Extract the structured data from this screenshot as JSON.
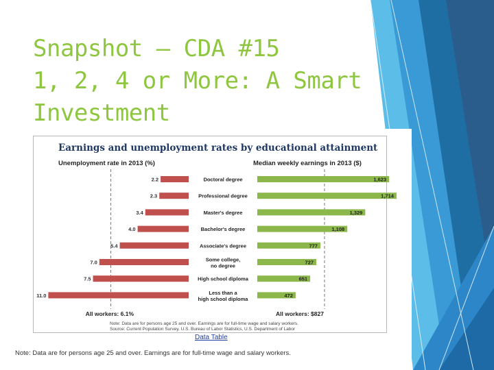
{
  "slide": {
    "title_lines": [
      "Snapshot – CDA #15",
      "1, 2, 4 or More: A Smart",
      "Investment"
    ],
    "data_table_link": "Data Table",
    "note": "Note: Data are for persons age 25 and over. Earnings are for full-time wage and salary workers."
  },
  "colors": {
    "title": "#8ec63f",
    "unemployment_bar": "#c0504d",
    "earnings_bar": "#8cb84b",
    "chart_title": "#1f3864"
  },
  "chart_data": {
    "type": "bar",
    "title": "Earnings and unemployment rates by educational attainment",
    "categories": [
      "Doctoral degree",
      "Professional degree",
      "Master's degree",
      "Bachelor's degree",
      "Associate's degree",
      "Some college, no degree",
      "High school diploma",
      "Less than a high school diploma"
    ],
    "category_lines": [
      [
        "Doctoral degree"
      ],
      [
        "Professional degree"
      ],
      [
        "Master's degree"
      ],
      [
        "Bachelor's degree"
      ],
      [
        "Associate's degree"
      ],
      [
        "Some college,",
        "no degree"
      ],
      [
        "High school diploma"
      ],
      [
        "Less than a",
        "high school diploma"
      ]
    ],
    "series": [
      {
        "name": "Unemployment rate in 2013 (%)",
        "values": [
          2.2,
          2.3,
          3.4,
          4.0,
          5.4,
          7.0,
          7.5,
          11.0
        ],
        "labels": [
          "2.2",
          "2.3",
          "3.4",
          "4.0",
          "5.4",
          "7.0",
          "7.5",
          "11.0"
        ],
        "average": 6.1,
        "average_label": "All workers: 6.1%",
        "direction": "left"
      },
      {
        "name": "Median weekly earnings in 2013 ($)",
        "values": [
          1623,
          1714,
          1329,
          1108,
          777,
          727,
          651,
          472
        ],
        "labels": [
          "1,623",
          "1,714",
          "1,329",
          "1,108",
          "777",
          "727",
          "651",
          "472"
        ],
        "average": 827,
        "average_label": "All workers: $827",
        "direction": "right"
      }
    ],
    "footnotes": [
      "Note: Data are for persons age 25 and over. Earnings are for full-time wage and salary workers.",
      "Source: Current Population Survey, U.S. Bureau of Labor Statistics, U.S. Department of Labor"
    ]
  }
}
